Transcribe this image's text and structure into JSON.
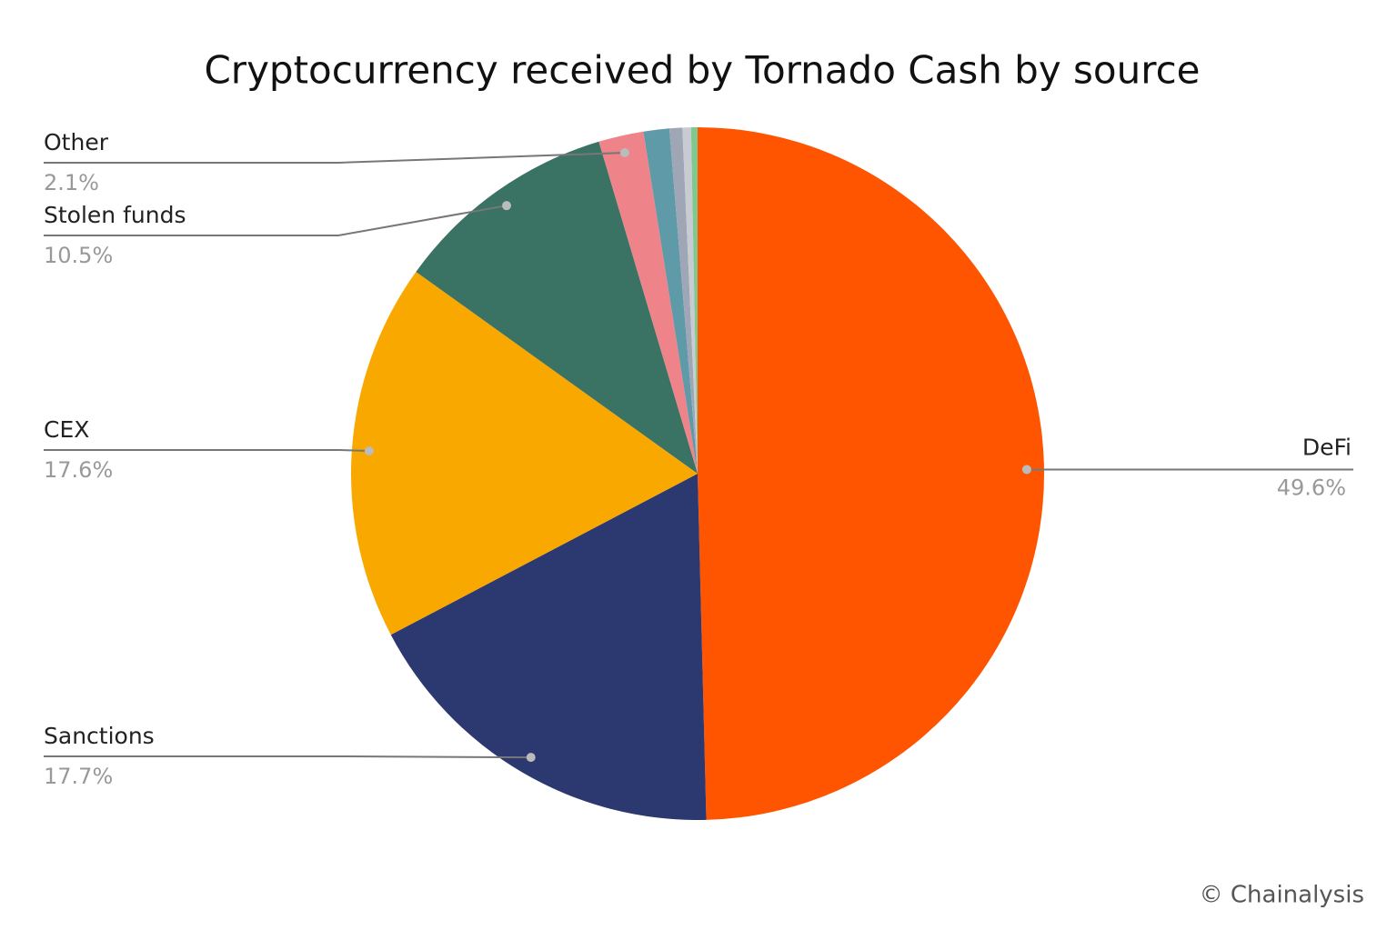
{
  "chart_data": {
    "type": "pie",
    "title": "Cryptocurrency received by Tornado Cash by source",
    "source": "© Chainalysis",
    "categories": [
      "DeFi",
      "Sanctions",
      "CEX",
      "Stolen funds",
      "Other",
      null,
      null,
      null,
      null
    ],
    "values": [
      49.6,
      17.7,
      17.6,
      10.5,
      2.1,
      1.2,
      0.6,
      0.4,
      0.3
    ],
    "value_labels": [
      "49.6%",
      "17.7%",
      "17.6%",
      "10.5%",
      "2.1%",
      null,
      null,
      null,
      null
    ],
    "colors": [
      "#ff5500",
      "#2c3870",
      "#f9a800",
      "#3a7264",
      "#ee8489",
      "#5f9aa8",
      "#9fa6b6",
      "#c8cbd2",
      "#7dc98f"
    ]
  }
}
